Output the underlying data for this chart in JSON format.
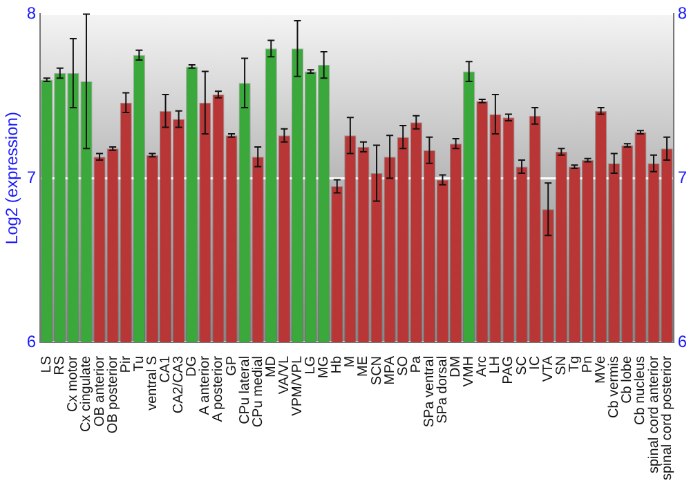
{
  "chart_data": {
    "type": "bar",
    "ylabel": "Log2 (expression)",
    "categories": [
      "LS",
      "RS",
      "Cx motor",
      "Cx cingulate",
      "OB anterior",
      "OB posterior",
      "Pir",
      "Tu",
      "ventral S",
      "CA1",
      "CA2/CA3",
      "DG",
      "A anterior",
      "A posterior",
      "GP",
      "CPu lateral",
      "CPu medial",
      "MD",
      "VA/VL",
      "VPM/VPL",
      "LG",
      "MG",
      "Hb",
      "M",
      "ME",
      "SCN",
      "MPA",
      "SO",
      "Pa",
      "SPa ventral",
      "SPa dorsal",
      "DM",
      "VMH",
      "Arc",
      "LH",
      "PAG",
      "SC",
      "IC",
      "VTA",
      "SN",
      "Tg",
      "Pn",
      "MVe",
      "Cb vermis",
      "Cb lobe",
      "Cb nucleus",
      "spinal cord anterior",
      "spinal cord posterior"
    ],
    "values": [
      7.6,
      7.64,
      7.64,
      7.59,
      7.13,
      7.18,
      7.46,
      7.75,
      7.14,
      7.41,
      7.36,
      7.68,
      7.46,
      7.51,
      7.26,
      7.58,
      7.13,
      7.79,
      7.26,
      7.79,
      7.65,
      7.69,
      6.95,
      7.26,
      7.19,
      7.03,
      7.13,
      7.25,
      7.34,
      7.17,
      6.99,
      7.21,
      7.65,
      7.47,
      7.39,
      7.37,
      7.07,
      7.38,
      6.81,
      7.16,
      7.07,
      7.11,
      7.41,
      7.09,
      7.2,
      7.28,
      7.09,
      7.18
    ],
    "errors": [
      0.01,
      0.03,
      0.21,
      0.41,
      0.02,
      0.01,
      0.06,
      0.03,
      0.01,
      0.1,
      0.05,
      0.01,
      0.19,
      0.02,
      0.01,
      0.15,
      0.06,
      0.05,
      0.04,
      0.17,
      0.01,
      0.08,
      0.04,
      0.11,
      0.03,
      0.17,
      0.13,
      0.07,
      0.04,
      0.08,
      0.03,
      0.03,
      0.06,
      0.01,
      0.12,
      0.02,
      0.04,
      0.05,
      0.16,
      0.02,
      0.01,
      0.01,
      0.02,
      0.06,
      0.01,
      0.01,
      0.05,
      0.07
    ],
    "colors": [
      "#3aa83a",
      "#3aa83a",
      "#3aa83a",
      "#3aa83a",
      "#b83636",
      "#b83636",
      "#b83636",
      "#3aa83a",
      "#b83636",
      "#b83636",
      "#b83636",
      "#3aa83a",
      "#b83636",
      "#b83636",
      "#b83636",
      "#3aa83a",
      "#b83636",
      "#3aa83a",
      "#b83636",
      "#3aa83a",
      "#3aa83a",
      "#3aa83a",
      "#b83636",
      "#b83636",
      "#b83636",
      "#b83636",
      "#b83636",
      "#b83636",
      "#b83636",
      "#b83636",
      "#b83636",
      "#b83636",
      "#3aa83a",
      "#b83636",
      "#b83636",
      "#b83636",
      "#b83636",
      "#b83636",
      "#b83636",
      "#b83636",
      "#b83636",
      "#b83636",
      "#b83636",
      "#b83636",
      "#b83636",
      "#b83636",
      "#b83636",
      "#b83636"
    ],
    "ylim": [
      6,
      8
    ],
    "yticks": [
      6,
      7,
      8
    ],
    "y2lim": [
      6,
      8
    ],
    "y2ticks": [
      6,
      7,
      8
    ],
    "grid": "y"
  }
}
